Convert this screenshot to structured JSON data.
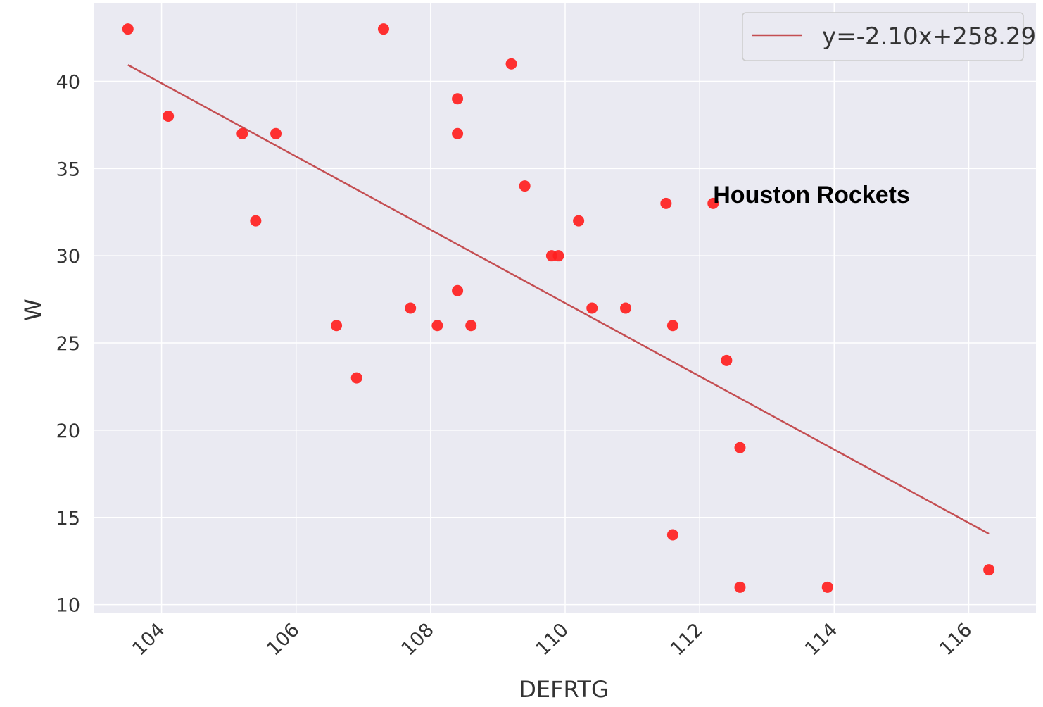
{
  "chart_data": {
    "type": "scatter",
    "title": "",
    "xlabel": "DEFRTG",
    "ylabel": "W",
    "xlim": [
      103.0,
      117.0
    ],
    "ylim": [
      9.5,
      44.5
    ],
    "xticks": [
      104,
      106,
      108,
      110,
      112,
      114,
      116
    ],
    "yticks": [
      10,
      15,
      20,
      25,
      30,
      35,
      40
    ],
    "grid": true,
    "background": "#eaeaf2",
    "marker_color": "#ff2020",
    "line_color": "#c44e52",
    "legend_position": "top-right",
    "points": [
      {
        "x": 103.5,
        "y": 43
      },
      {
        "x": 104.1,
        "y": 38
      },
      {
        "x": 105.2,
        "y": 37
      },
      {
        "x": 105.4,
        "y": 32
      },
      {
        "x": 105.7,
        "y": 37
      },
      {
        "x": 106.6,
        "y": 26
      },
      {
        "x": 106.9,
        "y": 23
      },
      {
        "x": 107.3,
        "y": 43
      },
      {
        "x": 107.7,
        "y": 27
      },
      {
        "x": 108.1,
        "y": 26
      },
      {
        "x": 108.4,
        "y": 39
      },
      {
        "x": 108.4,
        "y": 37
      },
      {
        "x": 108.4,
        "y": 28
      },
      {
        "x": 108.6,
        "y": 26
      },
      {
        "x": 109.2,
        "y": 41
      },
      {
        "x": 109.4,
        "y": 34
      },
      {
        "x": 109.8,
        "y": 30
      },
      {
        "x": 109.9,
        "y": 30
      },
      {
        "x": 110.2,
        "y": 32
      },
      {
        "x": 110.4,
        "y": 27
      },
      {
        "x": 110.9,
        "y": 27
      },
      {
        "x": 111.5,
        "y": 33
      },
      {
        "x": 111.6,
        "y": 26
      },
      {
        "x": 111.6,
        "y": 14
      },
      {
        "x": 112.2,
        "y": 33
      },
      {
        "x": 112.4,
        "y": 24
      },
      {
        "x": 112.6,
        "y": 19
      },
      {
        "x": 112.6,
        "y": 11
      },
      {
        "x": 113.9,
        "y": 11
      },
      {
        "x": 116.3,
        "y": 12
      }
    ],
    "fit_line": {
      "label": "y=-2.10x+258.29",
      "slope": -2.1,
      "intercept": 258.29,
      "x_range": [
        103.5,
        116.3
      ]
    },
    "annotation": {
      "text": "Houston Rockets",
      "x": 112.2,
      "y": 33
    }
  }
}
